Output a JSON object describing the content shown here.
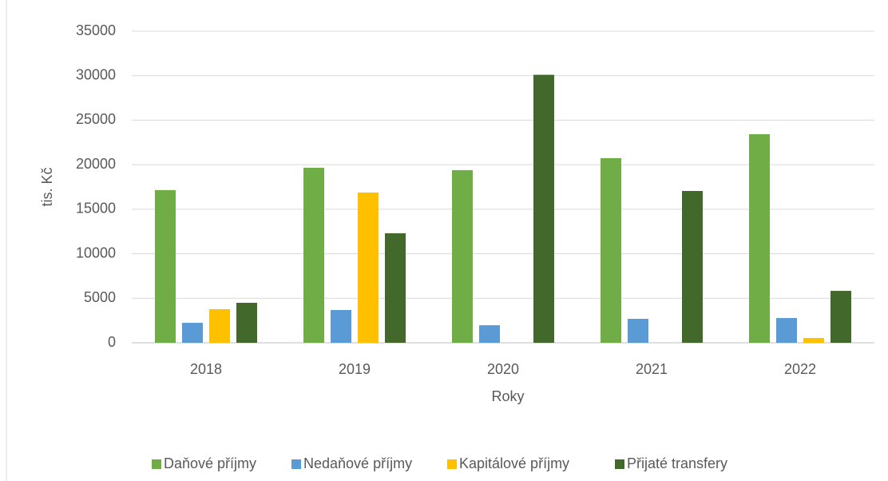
{
  "chart_data": {
    "type": "bar",
    "categories": [
      "2018",
      "2019",
      "2020",
      "2021",
      "2022"
    ],
    "series": [
      {
        "name": "Daňové příjmy",
        "color": "#70ad47",
        "values": [
          17150,
          19660,
          19390,
          20740,
          23430
        ]
      },
      {
        "name": "Nedaňové příjmy",
        "color": "#5b9bd5",
        "values": [
          2240,
          3680,
          1970,
          2690,
          2780
        ]
      },
      {
        "name": "Kapitálové příjmy",
        "color": "#ffc000",
        "values": [
          3770,
          16880,
          0,
          0,
          540
        ]
      },
      {
        "name": "Přijaté transfery",
        "color": "#43682b",
        "values": [
          4490,
          12300,
          30100,
          17050,
          5830
        ]
      }
    ],
    "x_label": "Roky",
    "y_label": "tis. Kč",
    "ylim": [
      0,
      35000
    ],
    "yticks": [
      0,
      5000,
      10000,
      15000,
      20000,
      25000,
      30000,
      35000
    ],
    "grid": true,
    "legend": "bottom"
  }
}
